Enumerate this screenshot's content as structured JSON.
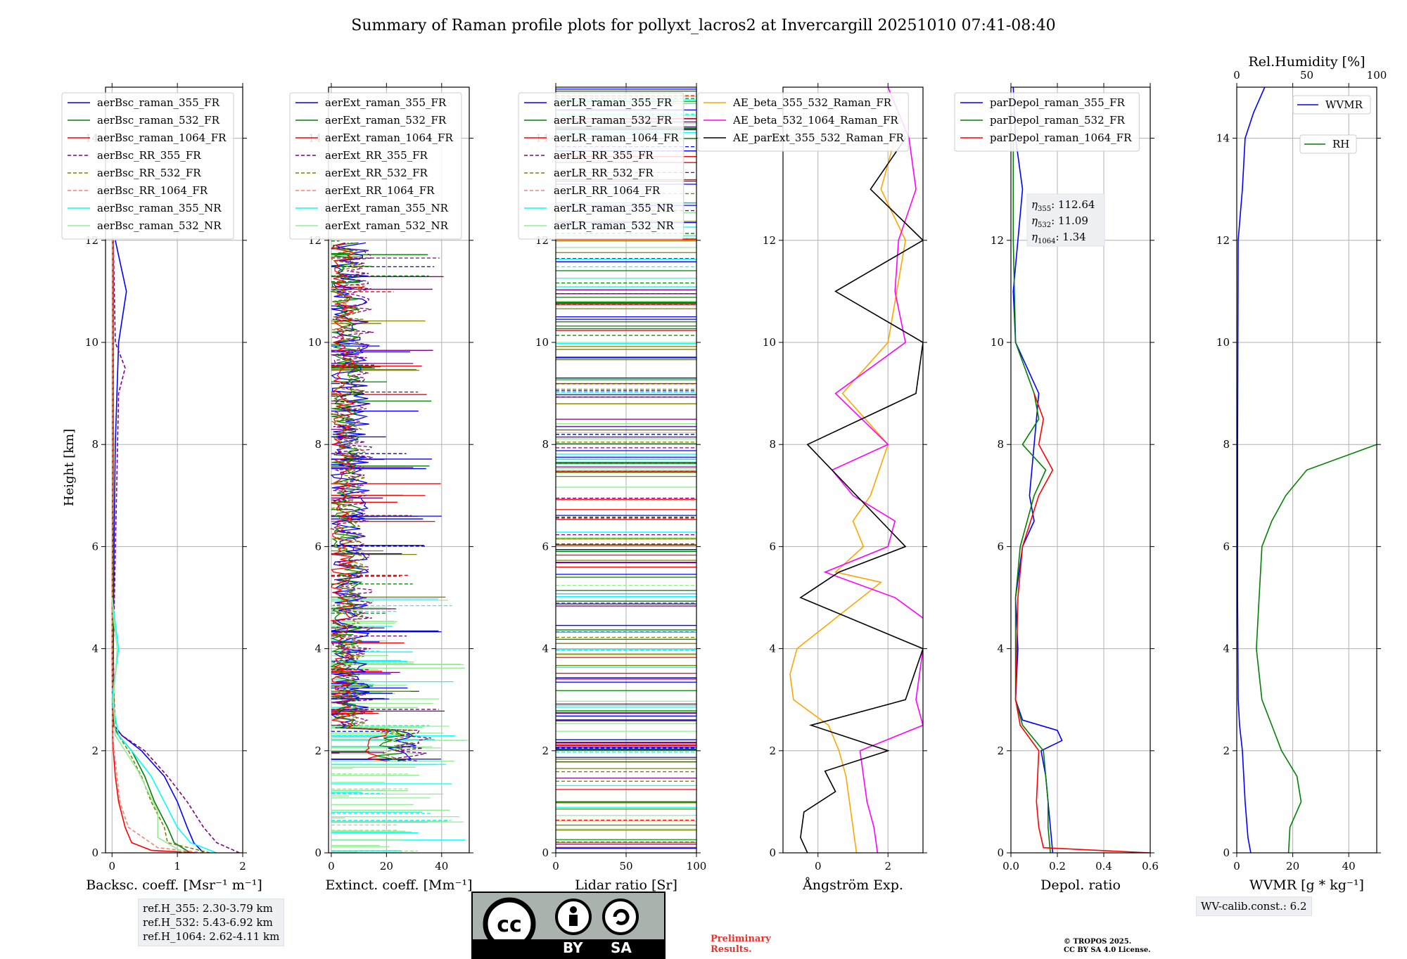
{
  "title": "Summary of Raman profile plots for pollyxt_lacros2 at Invercargill 20251010 07:41-08:40",
  "ylabel": "Height [km]",
  "colors": {
    "blue": "#0000ff",
    "green": "#008000",
    "red": "#ff0000",
    "purple": "#800080",
    "olive": "#808000",
    "salmon": "#fa8072",
    "cyan": "#00ffff",
    "lightgreen": "#90ee90",
    "orange": "#ffa500",
    "magenta": "#ff00ff",
    "black": "#000000"
  },
  "chart_data": [
    {
      "type": "line",
      "id": "bsc",
      "xlabel": "Backsc. coeff. [Msr⁻¹ m⁻¹]",
      "xlim": [
        -0.1,
        2
      ],
      "xticks": [
        "0",
        "1",
        "2"
      ],
      "xtick_values": [
        0,
        1,
        2
      ],
      "ylim": [
        0,
        15
      ],
      "yticks": [
        "0",
        "2",
        "4",
        "6",
        "8",
        "10",
        "12",
        "14"
      ],
      "legend": [
        "aerBsc_raman_355_FR",
        "aerBsc_raman_532_FR",
        "aerBsc_raman_1064_FR",
        "aerBsc_RR_355_FR",
        "aerBsc_RR_532_FR",
        "aerBsc_RR_1064_FR",
        "aerBsc_raman_355_NR",
        "aerBsc_raman_532_NR"
      ],
      "series": [
        {
          "name": "aerBsc_raman_355_FR",
          "color": "blue",
          "dash": false,
          "y": [
            0,
            0.2,
            0.5,
            1,
            1.5,
            2,
            2.3,
            2.5,
            4,
            6,
            8,
            10,
            11,
            12
          ],
          "x": [
            1.4,
            1.25,
            1.15,
            1.0,
            0.8,
            0.45,
            0.15,
            0.03,
            0.02,
            0.03,
            0.05,
            0.1,
            0.22,
            0.05
          ]
        },
        {
          "name": "aerBsc_raman_532_FR",
          "color": "green",
          "dash": false,
          "y": [
            0,
            0.2,
            0.5,
            1,
            1.5,
            2,
            2.3,
            2.5,
            4,
            8,
            12
          ],
          "x": [
            1.2,
            0.95,
            0.85,
            0.65,
            0.5,
            0.3,
            0.1,
            0.02,
            0.01,
            0.02,
            0.02
          ]
        },
        {
          "name": "aerBsc_raman_1064_FR",
          "color": "red",
          "dash": false,
          "y": [
            0,
            0.05,
            0.2,
            0.5,
            1,
            1.5,
            2,
            2.3,
            4,
            8,
            12
          ],
          "x": [
            1.3,
            0.6,
            0.3,
            0.2,
            0.1,
            0.05,
            0.02,
            0.01,
            0.0,
            0.01,
            0.01
          ]
        },
        {
          "name": "aerBsc_RR_355_FR",
          "color": "purple",
          "dash": true,
          "y": [
            0,
            0.2,
            0.5,
            1,
            1.5,
            2,
            2.3,
            2.5,
            4,
            9,
            9.5,
            10,
            12
          ],
          "x": [
            1.95,
            1.6,
            1.4,
            1.15,
            0.85,
            0.5,
            0.15,
            0.03,
            0.02,
            0.1,
            0.2,
            0.05,
            0.02
          ]
        },
        {
          "name": "aerBsc_RR_532_FR",
          "color": "olive",
          "dash": true,
          "y": [
            0,
            0.2,
            0.5,
            1,
            1.5,
            2,
            2.4,
            4,
            8,
            12
          ],
          "x": [
            1.5,
            0.85,
            0.8,
            0.6,
            0.45,
            0.25,
            0.05,
            0.01,
            0.02,
            0.02
          ]
        },
        {
          "name": "aerBsc_RR_1064_FR",
          "color": "salmon",
          "dash": true,
          "y": [
            0,
            0.1,
            0.5,
            1,
            2,
            2.3,
            4,
            12
          ],
          "x": [
            1.4,
            0.7,
            0.25,
            0.12,
            0.03,
            0.01,
            0.0,
            0.01
          ]
        },
        {
          "name": "aerBsc_raman_355_NR",
          "color": "cyan",
          "dash": false,
          "y": [
            0,
            0.2,
            0.5,
            1,
            1.5,
            2,
            2.3,
            3,
            3.5,
            4,
            4.5,
            5
          ],
          "x": [
            1.6,
            1.2,
            1.0,
            0.8,
            0.6,
            0.3,
            0.1,
            0.0,
            0.05,
            0.1,
            0.05,
            0.0
          ]
        },
        {
          "name": "aerBsc_raman_532_NR",
          "color": "lightgreen",
          "dash": false,
          "y": [
            0,
            0.3,
            0.8,
            1.2,
            1.6,
            2,
            2.3,
            3,
            4,
            4.5,
            5
          ],
          "x": [
            1.1,
            0.7,
            0.7,
            0.55,
            0.4,
            0.2,
            0.05,
            0.02,
            0.08,
            0.03,
            0.0
          ]
        }
      ]
    },
    {
      "type": "line",
      "id": "ext",
      "xlabel": "Extinct. coeff. [Mm⁻¹]",
      "xlim": [
        -1,
        50
      ],
      "xticks": [
        "0",
        "20",
        "40"
      ],
      "xtick_values": [
        0,
        20,
        40
      ],
      "ylim": [
        0,
        15
      ],
      "yticks": [
        "0",
        "2",
        "4",
        "6",
        "8",
        "10",
        "12",
        "14"
      ],
      "legend": [
        "aerExt_raman_355_FR",
        "aerExt_raman_532_FR",
        "aerExt_raman_1064_FR",
        "aerExt_RR_355_FR",
        "aerExt_RR_532_FR",
        "aerExt_RR_1064_FR",
        "aerExt_raman_355_NR",
        "aerExt_raman_532_NR"
      ]
    },
    {
      "type": "line",
      "id": "lr",
      "xlabel": "Lidar ratio [Sr]",
      "xlim": [
        0,
        100
      ],
      "xticks": [
        "0",
        "50",
        "100"
      ],
      "xtick_values": [
        0,
        50,
        100
      ],
      "ylim": [
        0,
        15
      ],
      "yticks": [
        "0",
        "2",
        "4",
        "6",
        "8",
        "10",
        "12",
        "14"
      ],
      "legend": [
        "aerLR_raman_355_FR",
        "aerLR_raman_532_FR",
        "aerLR_raman_1064_FR",
        "aerLR_RR_355_FR",
        "aerLR_RR_532_FR",
        "aerLR_RR_1064_FR",
        "aerLR_raman_355_NR",
        "aerLR_raman_532_NR"
      ]
    },
    {
      "type": "line",
      "id": "ae",
      "xlabel": "Ångström Exp.",
      "xlim": [
        -1,
        3
      ],
      "xticks": [
        "0",
        "2"
      ],
      "xtick_values": [
        0,
        2
      ],
      "ylim": [
        0,
        15
      ],
      "yticks": [
        "0",
        "2",
        "4",
        "6",
        "8",
        "10",
        "12",
        "14"
      ],
      "legend": [
        "AE_beta_355_532_Raman_FR",
        "AE_beta_532_1064_Raman_FR",
        "AE_parExt_355_532_Raman_FR"
      ],
      "series": [
        {
          "name": "AE_beta_355_532_Raman_FR",
          "color": "orange",
          "dash": false,
          "y": [
            0,
            0.5,
            1,
            1.5,
            2,
            2.5,
            3,
            3.5,
            4,
            5.3,
            5.5,
            6,
            6.5,
            7,
            8,
            9,
            10,
            12,
            13,
            14
          ],
          "x": [
            1.1,
            1.0,
            0.9,
            0.8,
            0.6,
            0.3,
            -0.7,
            -0.8,
            -0.6,
            1.8,
            0.5,
            1.3,
            1.0,
            1.5,
            2.0,
            0.7,
            2.0,
            2.5,
            1.8,
            2.2
          ]
        },
        {
          "name": "AE_beta_532_1064_Raman_FR",
          "color": "magenta",
          "dash": false,
          "y": [
            0,
            0.5,
            1,
            1.5,
            2,
            2.5,
            3,
            4,
            4.5,
            5,
            5.5,
            6,
            6.5,
            7,
            7.5,
            8,
            9,
            10,
            11,
            12,
            13,
            14,
            15
          ],
          "x": [
            1.7,
            1.6,
            1.4,
            1.3,
            1.2,
            3.0,
            2.8,
            3.0,
            3.2,
            2.2,
            0.2,
            2.0,
            2.2,
            1.0,
            0.4,
            2.0,
            0.5,
            2.5,
            2.2,
            2.3,
            2.8,
            2.6,
            2.0
          ]
        },
        {
          "name": "AE_parExt_355_532_Raman_FR",
          "color": "black",
          "dash": false,
          "y": [
            0,
            0.3,
            0.8,
            1.2,
            1.6,
            2,
            2.5,
            3,
            4,
            5,
            5.5,
            6,
            8,
            9,
            10,
            11,
            12,
            13,
            14
          ],
          "x": [
            -0.3,
            -0.5,
            -0.4,
            0.5,
            0.2,
            2.0,
            -0.2,
            2.5,
            3.0,
            -0.5,
            0.6,
            2.5,
            -0.3,
            2.8,
            3.0,
            0.5,
            3.0,
            1.5,
            2.5
          ]
        }
      ]
    },
    {
      "type": "line",
      "id": "depol",
      "xlabel": "Depol. ratio",
      "xlim": [
        0,
        0.6
      ],
      "xticks": [
        "0.0",
        "0.2",
        "0.4",
        "0.6"
      ],
      "xtick_values": [
        0,
        0.2,
        0.4,
        0.6
      ],
      "ylim": [
        0,
        15
      ],
      "yticks": [
        "0",
        "2",
        "4",
        "6",
        "8",
        "10",
        "12",
        "14"
      ],
      "legend": [
        "parDepol_raman_355_FR",
        "parDepol_raman_532_FR",
        "parDepol_raman_1064_FR"
      ],
      "eta_labels": [
        "112.64",
        "11.09",
        "1.34"
      ],
      "series": [
        {
          "name": "parDepol_raman_355_FR",
          "color": "blue",
          "dash": false,
          "y": [
            0,
            0.5,
            1,
            1.5,
            2,
            2.2,
            2.4,
            2.6,
            3,
            4,
            5,
            6,
            6.5,
            7,
            8,
            9,
            10,
            11,
            12,
            13,
            14,
            15
          ],
          "x": [
            0.18,
            0.17,
            0.16,
            0.15,
            0.13,
            0.22,
            0.2,
            0.05,
            0.02,
            0.03,
            0.02,
            0.05,
            0.1,
            0.08,
            0.1,
            0.12,
            0.02,
            0.01,
            0.03,
            0.05,
            0.02,
            0.01
          ]
        },
        {
          "name": "parDepol_raman_532_FR",
          "color": "green",
          "dash": false,
          "y": [
            0,
            0.5,
            1,
            1.5,
            2,
            2.5,
            3,
            5,
            6,
            7,
            7.5,
            8,
            8.5,
            9,
            10,
            12,
            14
          ],
          "x": [
            0.17,
            0.16,
            0.16,
            0.15,
            0.14,
            0.05,
            0.02,
            0.02,
            0.04,
            0.1,
            0.15,
            0.05,
            0.12,
            0.1,
            0.02,
            0.01,
            0.01
          ]
        },
        {
          "name": "parDepol_raman_1064_FR",
          "color": "red",
          "dash": false,
          "y": [
            0,
            0.1,
            0.5,
            1,
            2,
            2.5,
            3,
            5,
            6,
            7,
            7.5,
            8,
            8.5,
            9
          ],
          "x": [
            0.6,
            0.14,
            0.12,
            0.11,
            0.12,
            0.04,
            0.02,
            0.03,
            0.05,
            0.12,
            0.18,
            0.12,
            0.14,
            0.1
          ]
        }
      ]
    },
    {
      "type": "line",
      "id": "wv",
      "xlabel": "WVMR [g * kg⁻¹]",
      "xlim": [
        0,
        50
      ],
      "xticks": [
        "0",
        "20",
        "40"
      ],
      "xtick_values": [
        0,
        20,
        40
      ],
      "ylim": [
        0,
        15
      ],
      "yticks": [
        "0",
        "2",
        "4",
        "6",
        "8",
        "10",
        "12",
        "14"
      ],
      "top_label": "Rel.Humidity [%]",
      "top_ticks": [
        "0",
        "50",
        "100"
      ],
      "top_tick_values": [
        0,
        50,
        100
      ],
      "legend": [
        "WVMR",
        "RH"
      ],
      "series": [
        {
          "name": "WVMR",
          "color": "blue",
          "dash": false,
          "y": [
            0,
            0.3,
            1,
            2,
            2.5,
            3,
            5,
            8,
            12,
            13,
            14,
            14.5,
            15
          ],
          "x": [
            5,
            4,
            3,
            2,
            1,
            0.5,
            0.3,
            0.3,
            0.5,
            2,
            3,
            6,
            10
          ]
        },
        {
          "name": "RH",
          "color": "green",
          "dash": false,
          "axis": "top",
          "y": [
            0,
            0.5,
            1,
            1.5,
            2,
            2.5,
            3,
            4,
            5,
            6,
            6.5,
            7,
            7.5,
            8
          ],
          "x": [
            37,
            38,
            46,
            43,
            32,
            25,
            18,
            14,
            16,
            18,
            25,
            35,
            50,
            100
          ]
        }
      ]
    }
  ],
  "ref_box": [
    "ref.H_355: 2.30-3.79 km",
    "ref.H_532: 5.43-6.92 km",
    "ref.H_1064: 2.62-4.11 km"
  ],
  "wv_box": "WV-calib.const.: 6.2",
  "preliminary": [
    "Preliminary",
    "Results."
  ],
  "copyright": [
    "© TROPOS 2025.",
    "CC BY SA 4.0 License."
  ],
  "license_badge": {
    "cc": "cc",
    "by": "BY",
    "sa": "SA"
  }
}
